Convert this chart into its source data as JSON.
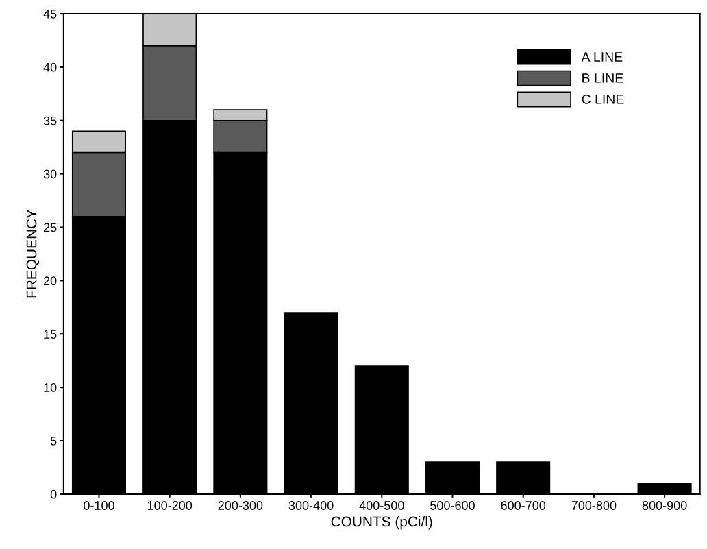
{
  "chart_data": {
    "type": "bar",
    "stacked": true,
    "xlabel": "COUNTS (pCi/l)",
    "ylabel": "FREQUENCY",
    "categories": [
      "0-100",
      "100-200",
      "200-300",
      "300-400",
      "400-500",
      "500-600",
      "600-700",
      "700-800",
      "800-900"
    ],
    "series": [
      {
        "name": "A LINE",
        "color": "#000000",
        "values": [
          26,
          35,
          32,
          17,
          12,
          3,
          3,
          0,
          1
        ]
      },
      {
        "name": "B LINE",
        "color": "#5a5a5a",
        "values": [
          6,
          7,
          3,
          0,
          0,
          0,
          0,
          0,
          0
        ]
      },
      {
        "name": "C LINE",
        "color": "#c4c4c4",
        "values": [
          2,
          3,
          1,
          0,
          0,
          0,
          0,
          0,
          0
        ]
      }
    ],
    "ylim": [
      0,
      45
    ],
    "yticks": [
      0,
      5,
      10,
      15,
      20,
      25,
      30,
      35,
      40,
      45
    ],
    "grid": false,
    "legend": "top right"
  }
}
